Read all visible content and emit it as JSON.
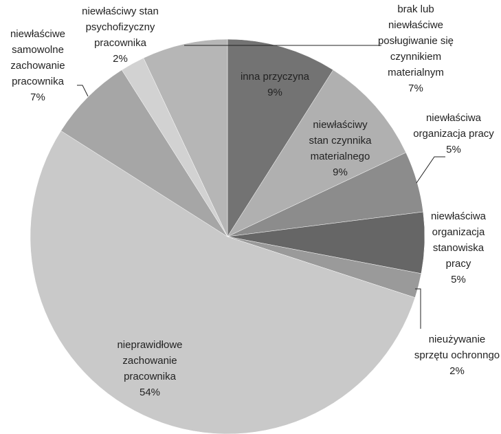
{
  "chart_data": {
    "type": "pie",
    "categories": [
      [
        "inna przyczyna"
      ],
      [
        "niewłaściwy",
        "stan czynnika",
        "materialnego"
      ],
      [
        "niewłaściwa",
        "organizacja pracy"
      ],
      [
        "niewłaściwa",
        "organizacja",
        "stanowiska",
        "pracy"
      ],
      [
        "nieużywanie",
        "sprzętu ochronngo"
      ],
      [
        "nieprawidłowe",
        "zachowanie",
        "pracownika"
      ],
      [
        "niewłaściwe",
        "samowolne",
        "zachowanie",
        "pracownika"
      ],
      [
        "niewłaściwy stan",
        "psychofizyczny",
        "pracownika"
      ],
      [
        "brak lub",
        "niewłaściwe",
        "posługiwanie się",
        "czynnikiem",
        "materialnym"
      ]
    ],
    "values": [
      9,
      9,
      5,
      5,
      2,
      54,
      7,
      2,
      7
    ],
    "value_labels": [
      "9%",
      "9%",
      "5%",
      "5%",
      "2%",
      "54%",
      "7%",
      "2%",
      "7%"
    ],
    "colors": [
      "#737373",
      "#b0b0b0",
      "#8c8c8c",
      "#666666",
      "#9a9a9a",
      "#c9c9c9",
      "#a6a6a6",
      "#d2d2d2",
      "#b6b6b6"
    ]
  }
}
